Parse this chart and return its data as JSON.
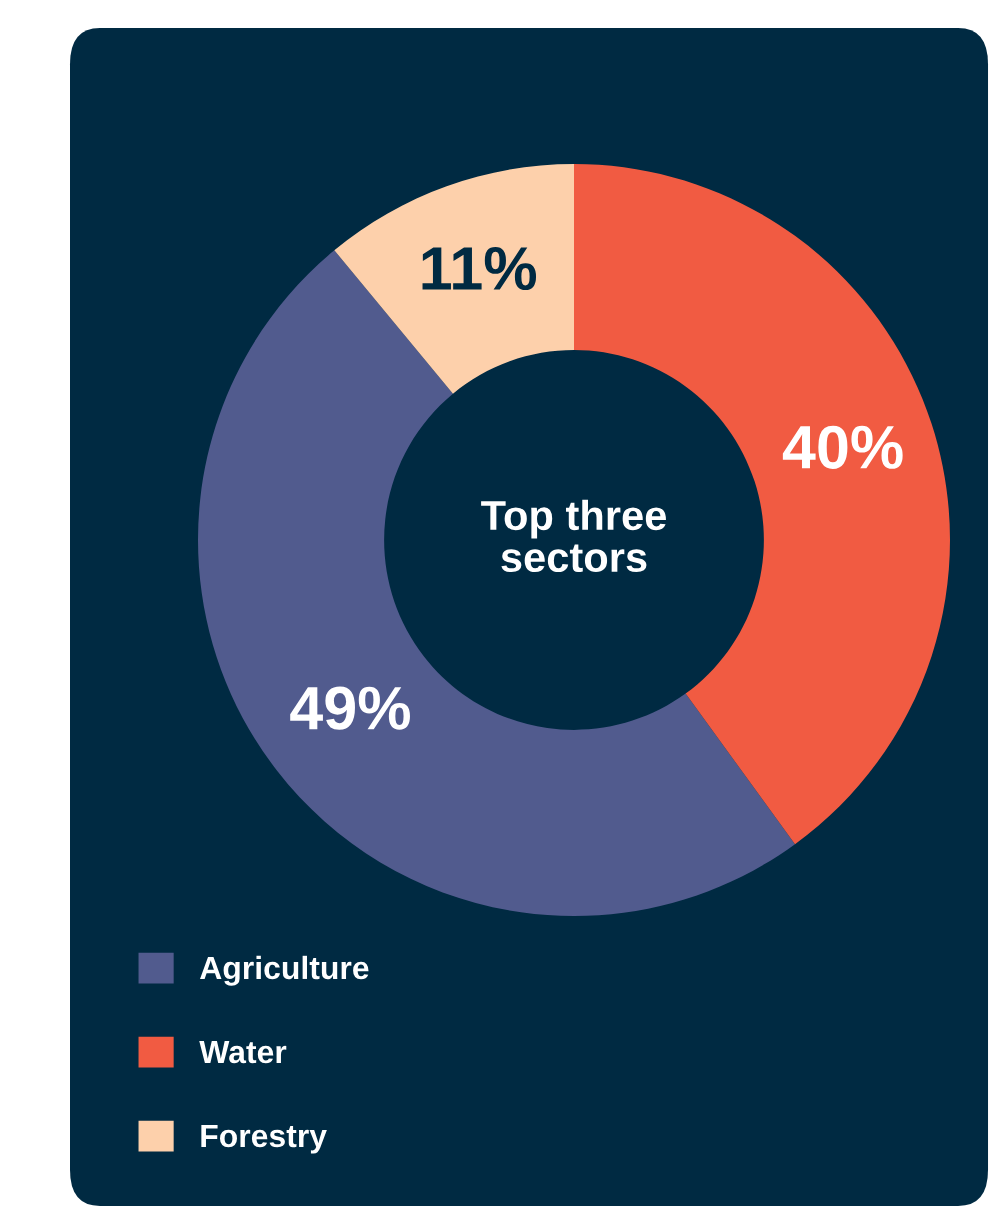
{
  "chart_data": {
    "type": "donut",
    "title": "Top three\nsectors",
    "categories": [
      "Agriculture",
      "Water",
      "Forestry"
    ],
    "values": [
      49,
      40,
      11
    ],
    "colors": [
      "#515b8e",
      "#f15b42",
      "#fdd0ab"
    ],
    "value_labels": [
      "49%",
      "40%",
      "11%"
    ],
    "legend": "bottom left"
  }
}
